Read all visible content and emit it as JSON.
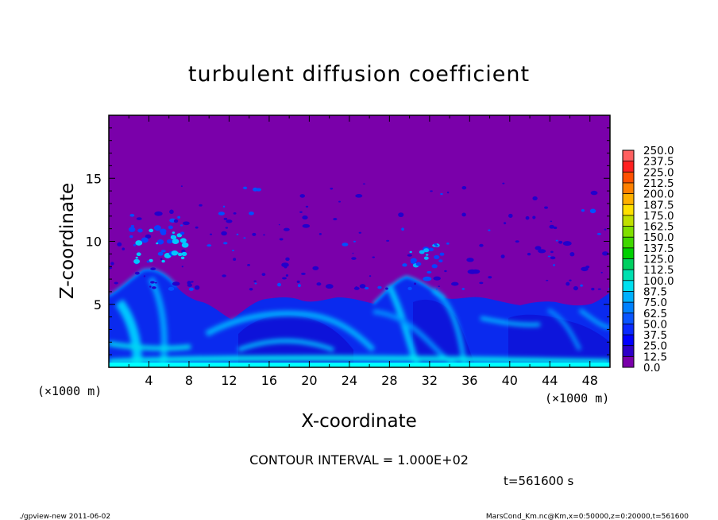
{
  "chart_data": {
    "type": "heatmap",
    "title": "turbulent diffusion coefficient",
    "xlabel": "X-coordinate",
    "ylabel": "Z-coordinate",
    "x_unit_left": "(×1000 m)",
    "x_unit_right": "(×1000 m)",
    "xlim": [
      0,
      50
    ],
    "ylim": [
      0,
      20
    ],
    "x_ticks": [
      "4",
      "8",
      "12",
      "16",
      "20",
      "24",
      "28",
      "32",
      "36",
      "40",
      "44",
      "48"
    ],
    "y_ticks": [
      "5",
      "10",
      "15"
    ],
    "colorbar_levels": [
      "0.0",
      "12.5",
      "25.0",
      "37.5",
      "50.0",
      "62.5",
      "75.0",
      "87.5",
      "100.0",
      "112.5",
      "125.0",
      "137.5",
      "150.0",
      "162.5",
      "175.0",
      "187.5",
      "200.0",
      "212.5",
      "225.0",
      "237.5",
      "250.0"
    ],
    "colorbar_colors": [
      "#7a00aa",
      "#2d00c8",
      "#0000ff",
      "#0a2aff",
      "#0a55ff",
      "#0080ff",
      "#00b0ff",
      "#00e0f0",
      "#00e0b0",
      "#00d060",
      "#00d000",
      "#40d800",
      "#80e000",
      "#c0e000",
      "#ffe000",
      "#ffb000",
      "#ff8000",
      "#ff5000",
      "#ff2020",
      "#ff6060"
    ],
    "background_value_color": "#7a00aa",
    "contour_interval": "CONTOUR INTERVAL = 1.000E+02",
    "time_label": "t=561600 s",
    "footer_left": "./gpview-new   2011-06-02",
    "footer_right": "MarsCond_Km.nc@Km,x=0:50000,z=0:20000,t=561600"
  }
}
